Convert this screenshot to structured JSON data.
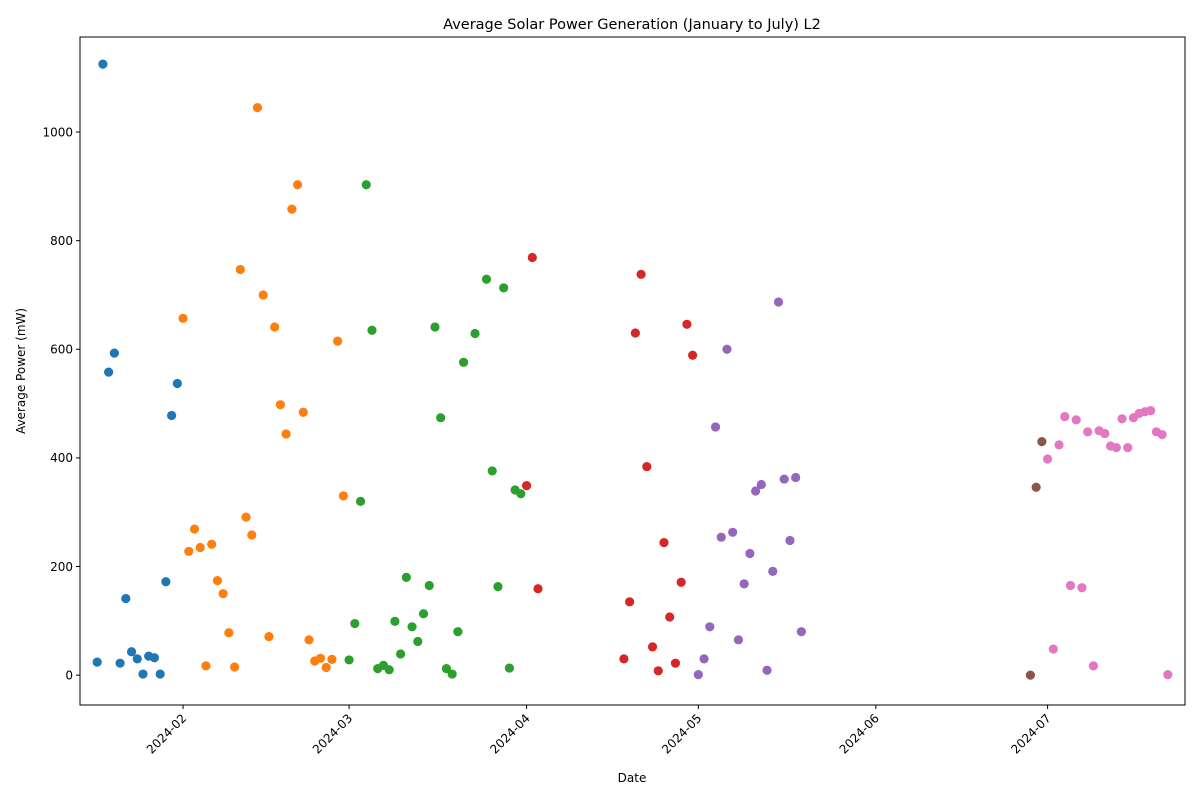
{
  "chart_data": {
    "type": "scatter",
    "title": "Average Solar Power Generation (January to July) L2",
    "xlabel": "Date",
    "ylabel": "Average Power (mW)",
    "x_axis_type": "date",
    "xlim": [
      "2024-01-14",
      "2024-07-25"
    ],
    "ylim": [
      -55,
      1175
    ],
    "x_ticks": [
      "2024-02-01",
      "2024-03-01",
      "2024-04-01",
      "2024-05-01",
      "2024-06-01",
      "2024-07-01"
    ],
    "x_tick_labels": [
      "2024-02",
      "2024-03",
      "2024-04",
      "2024-05",
      "2024-06",
      "2024-07"
    ],
    "y_ticks": [
      0,
      200,
      400,
      600,
      800,
      1000
    ],
    "y_tick_labels": [
      "0",
      "200",
      "400",
      "600",
      "800",
      "1000"
    ],
    "grid": false,
    "legend": false,
    "series": [
      {
        "color": "#1f77b4",
        "points": [
          {
            "x": "2024-01-17",
            "y": 24
          },
          {
            "x": "2024-01-18",
            "y": 1125
          },
          {
            "x": "2024-01-19",
            "y": 558
          },
          {
            "x": "2024-01-20",
            "y": 593
          },
          {
            "x": "2024-01-21",
            "y": 22
          },
          {
            "x": "2024-01-22",
            "y": 141
          },
          {
            "x": "2024-01-23",
            "y": 43
          },
          {
            "x": "2024-01-24",
            "y": 30
          },
          {
            "x": "2024-01-25",
            "y": 2
          },
          {
            "x": "2024-01-26",
            "y": 35
          },
          {
            "x": "2024-01-27",
            "y": 32
          },
          {
            "x": "2024-01-28",
            "y": 2
          },
          {
            "x": "2024-01-29",
            "y": 172
          },
          {
            "x": "2024-01-30",
            "y": 478
          },
          {
            "x": "2024-01-31",
            "y": 537
          }
        ]
      },
      {
        "color": "#ff7f0e",
        "points": [
          {
            "x": "2024-02-01",
            "y": 657
          },
          {
            "x": "2024-02-02",
            "y": 228
          },
          {
            "x": "2024-02-03",
            "y": 269
          },
          {
            "x": "2024-02-04",
            "y": 235
          },
          {
            "x": "2024-02-05",
            "y": 17
          },
          {
            "x": "2024-02-06",
            "y": 241
          },
          {
            "x": "2024-02-07",
            "y": 174
          },
          {
            "x": "2024-02-08",
            "y": 150
          },
          {
            "x": "2024-02-09",
            "y": 78
          },
          {
            "x": "2024-02-10",
            "y": 15
          },
          {
            "x": "2024-02-11",
            "y": 747
          },
          {
            "x": "2024-02-12",
            "y": 291
          },
          {
            "x": "2024-02-13",
            "y": 258
          },
          {
            "x": "2024-02-14",
            "y": 1045
          },
          {
            "x": "2024-02-15",
            "y": 700
          },
          {
            "x": "2024-02-16",
            "y": 71
          },
          {
            "x": "2024-02-17",
            "y": 641
          },
          {
            "x": "2024-02-18",
            "y": 498
          },
          {
            "x": "2024-02-19",
            "y": 444
          },
          {
            "x": "2024-02-20",
            "y": 858
          },
          {
            "x": "2024-02-21",
            "y": 903
          },
          {
            "x": "2024-02-22",
            "y": 484
          },
          {
            "x": "2024-02-23",
            "y": 65
          },
          {
            "x": "2024-02-24",
            "y": 26
          },
          {
            "x": "2024-02-25",
            "y": 31
          },
          {
            "x": "2024-02-26",
            "y": 14
          },
          {
            "x": "2024-02-27",
            "y": 29
          },
          {
            "x": "2024-02-28",
            "y": 615
          },
          {
            "x": "2024-02-29",
            "y": 330
          }
        ]
      },
      {
        "color": "#2ca02c",
        "points": [
          {
            "x": "2024-03-01",
            "y": 28
          },
          {
            "x": "2024-03-02",
            "y": 95
          },
          {
            "x": "2024-03-03",
            "y": 320
          },
          {
            "x": "2024-03-04",
            "y": 903
          },
          {
            "x": "2024-03-05",
            "y": 635
          },
          {
            "x": "2024-03-06",
            "y": 12
          },
          {
            "x": "2024-03-07",
            "y": 18
          },
          {
            "x": "2024-03-08",
            "y": 10
          },
          {
            "x": "2024-03-09",
            "y": 99
          },
          {
            "x": "2024-03-10",
            "y": 39
          },
          {
            "x": "2024-03-11",
            "y": 180
          },
          {
            "x": "2024-03-12",
            "y": 89
          },
          {
            "x": "2024-03-13",
            "y": 62
          },
          {
            "x": "2024-03-14",
            "y": 113
          },
          {
            "x": "2024-03-15",
            "y": 165
          },
          {
            "x": "2024-03-16",
            "y": 641
          },
          {
            "x": "2024-03-17",
            "y": 474
          },
          {
            "x": "2024-03-18",
            "y": 12
          },
          {
            "x": "2024-03-19",
            "y": 2
          },
          {
            "x": "2024-03-20",
            "y": 80
          },
          {
            "x": "2024-03-21",
            "y": 576
          },
          {
            "x": "2024-03-23",
            "y": 629
          },
          {
            "x": "2024-03-25",
            "y": 729
          },
          {
            "x": "2024-03-26",
            "y": 376
          },
          {
            "x": "2024-03-27",
            "y": 163
          },
          {
            "x": "2024-03-28",
            "y": 713
          },
          {
            "x": "2024-03-29",
            "y": 13
          },
          {
            "x": "2024-03-30",
            "y": 341
          },
          {
            "x": "2024-03-31",
            "y": 334
          }
        ]
      },
      {
        "color": "#d62728",
        "points": [
          {
            "x": "2024-04-01",
            "y": 349
          },
          {
            "x": "2024-04-02",
            "y": 769
          },
          {
            "x": "2024-04-03",
            "y": 159
          },
          {
            "x": "2024-04-18",
            "y": 30
          },
          {
            "x": "2024-04-19",
            "y": 135
          },
          {
            "x": "2024-04-20",
            "y": 630
          },
          {
            "x": "2024-04-21",
            "y": 738
          },
          {
            "x": "2024-04-22",
            "y": 384
          },
          {
            "x": "2024-04-23",
            "y": 52
          },
          {
            "x": "2024-04-24",
            "y": 8
          },
          {
            "x": "2024-04-25",
            "y": 244
          },
          {
            "x": "2024-04-26",
            "y": 107
          },
          {
            "x": "2024-04-27",
            "y": 22
          },
          {
            "x": "2024-04-28",
            "y": 171
          },
          {
            "x": "2024-04-29",
            "y": 646
          },
          {
            "x": "2024-04-30",
            "y": 589
          }
        ]
      },
      {
        "color": "#9467bd",
        "points": [
          {
            "x": "2024-05-01",
            "y": 1
          },
          {
            "x": "2024-05-02",
            "y": 30
          },
          {
            "x": "2024-05-03",
            "y": 89
          },
          {
            "x": "2024-05-04",
            "y": 457
          },
          {
            "x": "2024-05-05",
            "y": 254
          },
          {
            "x": "2024-05-06",
            "y": 600
          },
          {
            "x": "2024-05-07",
            "y": 263
          },
          {
            "x": "2024-05-08",
            "y": 65
          },
          {
            "x": "2024-05-09",
            "y": 168
          },
          {
            "x": "2024-05-10",
            "y": 224
          },
          {
            "x": "2024-05-11",
            "y": 339
          },
          {
            "x": "2024-05-12",
            "y": 351
          },
          {
            "x": "2024-05-13",
            "y": 9
          },
          {
            "x": "2024-05-14",
            "y": 191
          },
          {
            "x": "2024-05-15",
            "y": 687
          },
          {
            "x": "2024-05-16",
            "y": 361
          },
          {
            "x": "2024-05-17",
            "y": 248
          },
          {
            "x": "2024-05-18",
            "y": 364
          },
          {
            "x": "2024-05-19",
            "y": 80
          }
        ]
      },
      {
        "color": "#8c564b",
        "points": [
          {
            "x": "2024-06-28",
            "y": 0
          },
          {
            "x": "2024-06-29",
            "y": 346
          },
          {
            "x": "2024-06-30",
            "y": 430
          }
        ]
      },
      {
        "color": "#e377c2",
        "points": [
          {
            "x": "2024-07-01",
            "y": 398
          },
          {
            "x": "2024-07-02",
            "y": 48
          },
          {
            "x": "2024-07-03",
            "y": 424
          },
          {
            "x": "2024-07-04",
            "y": 476
          },
          {
            "x": "2024-07-05",
            "y": 165
          },
          {
            "x": "2024-07-06",
            "y": 470
          },
          {
            "x": "2024-07-07",
            "y": 161
          },
          {
            "x": "2024-07-08",
            "y": 448
          },
          {
            "x": "2024-07-09",
            "y": 17
          },
          {
            "x": "2024-07-10",
            "y": 450
          },
          {
            "x": "2024-07-11",
            "y": 445
          },
          {
            "x": "2024-07-12",
            "y": 422
          },
          {
            "x": "2024-07-13",
            "y": 419
          },
          {
            "x": "2024-07-14",
            "y": 472
          },
          {
            "x": "2024-07-15",
            "y": 419
          },
          {
            "x": "2024-07-16",
            "y": 474
          },
          {
            "x": "2024-07-17",
            "y": 482
          },
          {
            "x": "2024-07-18",
            "y": 485
          },
          {
            "x": "2024-07-19",
            "y": 487
          },
          {
            "x": "2024-07-20",
            "y": 448
          },
          {
            "x": "2024-07-21",
            "y": 443
          },
          {
            "x": "2024-07-22",
            "y": 1
          }
        ]
      }
    ]
  }
}
